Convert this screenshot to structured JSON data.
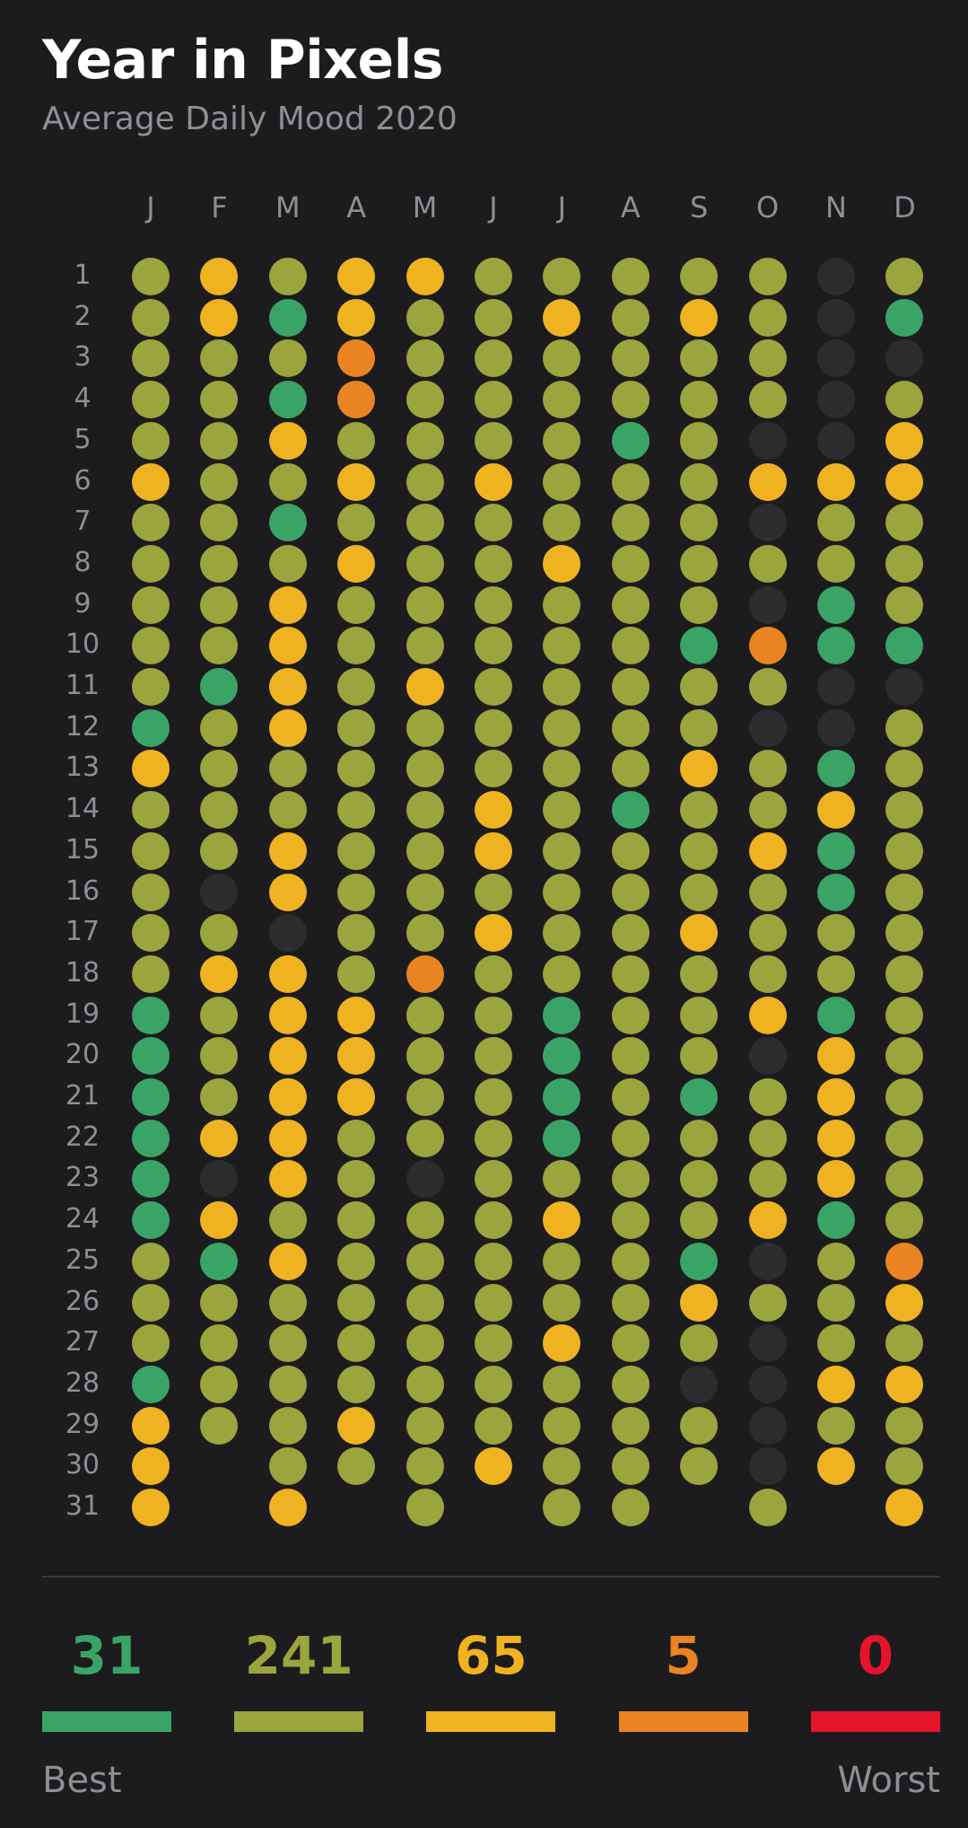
{
  "header": {
    "title": "Year in Pixels",
    "subtitle": "Average Daily Mood 2020"
  },
  "months": [
    "J",
    "F",
    "M",
    "A",
    "M",
    "J",
    "J",
    "A",
    "S",
    "O",
    "N",
    "D"
  ],
  "days": [
    "1",
    "2",
    "3",
    "4",
    "5",
    "6",
    "7",
    "8",
    "9",
    "10",
    "11",
    "12",
    "13",
    "14",
    "15",
    "16",
    "17",
    "18",
    "19",
    "20",
    "21",
    "22",
    "23",
    "24",
    "25",
    "26",
    "27",
    "28",
    "29",
    "30",
    "31"
  ],
  "mood_colors": {
    "0": "#2c2c2e",
    "1": "#3aa466",
    "2": "#9aa53d",
    "3": "#efb321",
    "4": "#ea8422",
    "5": "#e5142b"
  },
  "grid_legend": "mood codes: 1 best (green), 2 olive, 3 yellow, 4 orange, 5 worst (red), 0 no entry, null day absent",
  "grid": [
    [
      "2",
      "3",
      "2",
      "3",
      "3",
      "2",
      "2",
      "2",
      "2",
      "2",
      "0",
      "2"
    ],
    [
      "2",
      "3",
      "1",
      "3",
      "2",
      "2",
      "3",
      "2",
      "3",
      "2",
      "0",
      "1"
    ],
    [
      "2",
      "2",
      "2",
      "4",
      "2",
      "2",
      "2",
      "2",
      "2",
      "2",
      "0",
      "0"
    ],
    [
      "2",
      "2",
      "1",
      "4",
      "2",
      "2",
      "2",
      "2",
      "2",
      "2",
      "0",
      "2"
    ],
    [
      "2",
      "2",
      "3",
      "2",
      "2",
      "2",
      "2",
      "1",
      "2",
      "0",
      "0",
      "3"
    ],
    [
      "3",
      "2",
      "2",
      "3",
      "2",
      "3",
      "2",
      "2",
      "2",
      "3",
      "3",
      "3"
    ],
    [
      "2",
      "2",
      "1",
      "2",
      "2",
      "2",
      "2",
      "2",
      "2",
      "0",
      "2",
      "2"
    ],
    [
      "2",
      "2",
      "2",
      "3",
      "2",
      "2",
      "3",
      "2",
      "2",
      "2",
      "2",
      "2"
    ],
    [
      "2",
      "2",
      "3",
      "2",
      "2",
      "2",
      "2",
      "2",
      "2",
      "0",
      "1",
      "2"
    ],
    [
      "2",
      "2",
      "3",
      "2",
      "2",
      "2",
      "2",
      "2",
      "1",
      "4",
      "1",
      "1"
    ],
    [
      "2",
      "1",
      "3",
      "2",
      "3",
      "2",
      "2",
      "2",
      "2",
      "2",
      "0",
      "0"
    ],
    [
      "1",
      "2",
      "3",
      "2",
      "2",
      "2",
      "2",
      "2",
      "2",
      "0",
      "0",
      "2"
    ],
    [
      "3",
      "2",
      "2",
      "2",
      "2",
      "2",
      "2",
      "2",
      "3",
      "2",
      "1",
      "2"
    ],
    [
      "2",
      "2",
      "2",
      "2",
      "2",
      "3",
      "2",
      "1",
      "2",
      "2",
      "3",
      "2"
    ],
    [
      "2",
      "2",
      "3",
      "2",
      "2",
      "3",
      "2",
      "2",
      "2",
      "3",
      "1",
      "2"
    ],
    [
      "2",
      "0",
      "3",
      "2",
      "2",
      "2",
      "2",
      "2",
      "2",
      "2",
      "1",
      "2"
    ],
    [
      "2",
      "2",
      "0",
      "2",
      "2",
      "3",
      "2",
      "2",
      "3",
      "2",
      "2",
      "2"
    ],
    [
      "2",
      "3",
      "3",
      "2",
      "4",
      "2",
      "2",
      "2",
      "2",
      "2",
      "2",
      "2"
    ],
    [
      "1",
      "2",
      "3",
      "3",
      "2",
      "2",
      "1",
      "2",
      "2",
      "3",
      "1",
      "2"
    ],
    [
      "1",
      "2",
      "3",
      "3",
      "2",
      "2",
      "1",
      "2",
      "2",
      "0",
      "3",
      "2"
    ],
    [
      "1",
      "2",
      "3",
      "3",
      "2",
      "2",
      "1",
      "2",
      "1",
      "2",
      "3",
      "2"
    ],
    [
      "1",
      "3",
      "3",
      "2",
      "2",
      "2",
      "1",
      "2",
      "2",
      "2",
      "3",
      "2"
    ],
    [
      "1",
      "0",
      "3",
      "2",
      "0",
      "2",
      "2",
      "2",
      "2",
      "2",
      "3",
      "2"
    ],
    [
      "1",
      "3",
      "2",
      "2",
      "2",
      "2",
      "3",
      "2",
      "2",
      "3",
      "1",
      "2"
    ],
    [
      "2",
      "1",
      "3",
      "2",
      "2",
      "2",
      "2",
      "2",
      "1",
      "0",
      "2",
      "4"
    ],
    [
      "2",
      "2",
      "2",
      "2",
      "2",
      "2",
      "2",
      "2",
      "3",
      "2",
      "2",
      "3"
    ],
    [
      "2",
      "2",
      "2",
      "2",
      "2",
      "2",
      "3",
      "2",
      "2",
      "0",
      "2",
      "2"
    ],
    [
      "1",
      "2",
      "2",
      "2",
      "2",
      "2",
      "2",
      "2",
      "0",
      "0",
      "3",
      "3"
    ],
    [
      "3",
      "2",
      "2",
      "3",
      "2",
      "2",
      "2",
      "2",
      "2",
      "0",
      "2",
      "2"
    ],
    [
      "3",
      null,
      "2",
      "2",
      "2",
      "3",
      "2",
      "2",
      "2",
      "0",
      "3",
      "2"
    ],
    [
      "3",
      null,
      "3",
      null,
      "2",
      null,
      "2",
      "2",
      null,
      "2",
      null,
      "3"
    ]
  ],
  "summary": [
    {
      "count": "31",
      "color": "#3aa466"
    },
    {
      "count": "241",
      "color": "#9aa53d"
    },
    {
      "count": "65",
      "color": "#efb321"
    },
    {
      "count": "5",
      "color": "#ea8422"
    },
    {
      "count": "0",
      "color": "#e5142b"
    }
  ],
  "legend": {
    "best": "Best",
    "worst": "Worst"
  }
}
